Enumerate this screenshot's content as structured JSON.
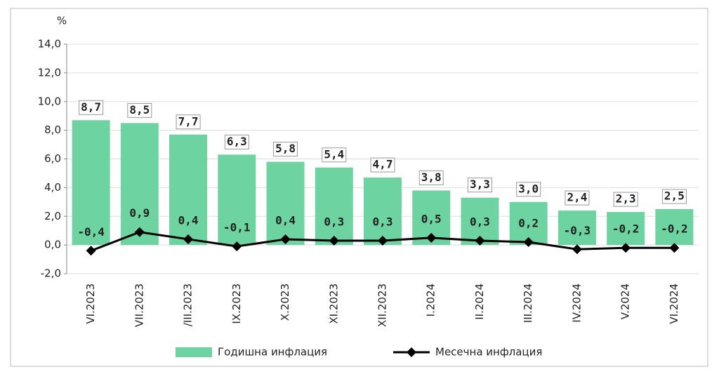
{
  "chart_data": {
    "type": "bar",
    "y_label": "%",
    "categories": [
      "VI.2023",
      "VII.2023",
      "/III.2023",
      "IX.2023",
      "X.2023",
      "XI.2023",
      "XII.2023",
      "I.2024",
      "II.2024",
      "III.2024",
      "IV.2024",
      "V.2024",
      "VI.2024"
    ],
    "series": [
      {
        "name": "Годишна инфлация",
        "type": "bar",
        "color": "#6dd3a0",
        "values": [
          8.7,
          8.5,
          7.7,
          6.3,
          5.8,
          5.4,
          4.7,
          3.8,
          3.3,
          3.0,
          2.4,
          2.3,
          2.5
        ],
        "value_labels": [
          "8,7",
          "8,5",
          "7,7",
          "6,3",
          "5,8",
          "5,4",
          "4,7",
          "3,8",
          "3,3",
          "3,0",
          "2,4",
          "2,3",
          "2,5"
        ]
      },
      {
        "name": "Месечна инфлация",
        "type": "line",
        "color": "#000000",
        "values": [
          -0.4,
          0.9,
          0.4,
          -0.1,
          0.4,
          0.3,
          0.3,
          0.5,
          0.3,
          0.2,
          -0.3,
          -0.2,
          -0.2
        ],
        "value_labels": [
          "-0,4",
          "0,9",
          "0,4",
          "-0,1",
          "0,4",
          "0,3",
          "0,3",
          "0,5",
          "0,3",
          "0,2",
          "-0,3",
          "-0,2",
          "-0,2"
        ]
      }
    ],
    "ylim": [
      -2,
      14
    ],
    "yticks": [
      {
        "value": -2,
        "label": "-2,0"
      },
      {
        "value": 0,
        "label": "0,0"
      },
      {
        "value": 2,
        "label": "2,0"
      },
      {
        "value": 4,
        "label": "4,0"
      },
      {
        "value": 6,
        "label": "6,0"
      },
      {
        "value": 8,
        "label": "8,0"
      },
      {
        "value": 10,
        "label": "10,0"
      },
      {
        "value": 12,
        "label": "12,0"
      },
      {
        "value": 14,
        "label": "14,0"
      }
    ],
    "grid": true,
    "legend": "bottom"
  }
}
